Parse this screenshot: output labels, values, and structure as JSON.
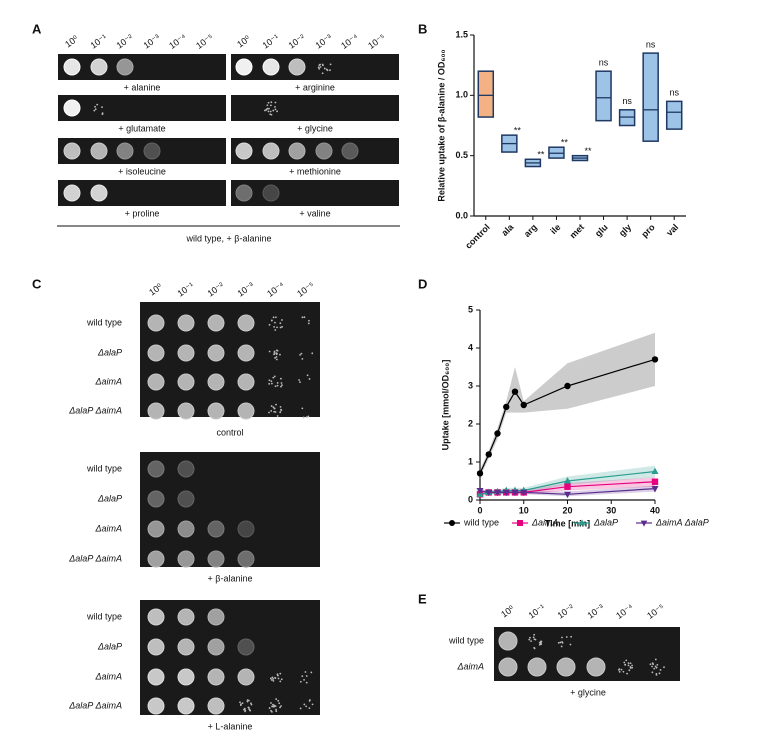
{
  "panel_labels": [
    "A",
    "B",
    "C",
    "D",
    "E"
  ],
  "panel_a": {
    "dilutions": [
      "10⁰",
      "10⁻¹",
      "10⁻²",
      "10⁻³",
      "10⁻⁴",
      "10⁻⁵"
    ],
    "plates": [
      "+ alanine",
      "+ arginine",
      "+ glutamate",
      "+ glycine",
      "+ isoleucine",
      "+ methionine",
      "+ proline",
      "+ valine"
    ],
    "caption": "wild type, + β-alanine"
  },
  "panel_c": {
    "dilutions": [
      "10⁰",
      "10⁻¹",
      "10⁻²",
      "10⁻³",
      "10⁻⁴",
      "10⁻⁵"
    ],
    "strains": [
      "wild type",
      "ΔalaP",
      "ΔaimA",
      "ΔalaP ΔaimA"
    ],
    "plates": [
      "control",
      "+ β-alanine",
      "+ L-alanine"
    ]
  },
  "panel_e": {
    "dilutions": [
      "10⁰",
      "10⁻¹",
      "10⁻²",
      "10⁻³",
      "10⁻⁴",
      "10⁻⁵"
    ],
    "strains": [
      "wild type",
      "ΔaimA"
    ],
    "plate": "+ glycine"
  },
  "chart_data": [
    {
      "type": "floating_bar",
      "ylabel": "Relative uptake of β-alanine / OD₆₀₀",
      "categories": [
        "control",
        "ala",
        "arg",
        "ile",
        "met",
        "glu",
        "gly",
        "pro",
        "val"
      ],
      "low": [
        0.82,
        0.53,
        0.41,
        0.48,
        0.46,
        0.79,
        0.75,
        0.62,
        0.72
      ],
      "high": [
        1.2,
        0.67,
        0.47,
        0.57,
        0.5,
        1.2,
        0.88,
        1.35,
        0.95
      ],
      "mean": [
        1.0,
        0.6,
        0.44,
        0.52,
        0.48,
        0.98,
        0.82,
        0.88,
        0.86
      ],
      "colors": [
        "#f4b183",
        "#9dc3e6",
        "#9dc3e6",
        "#9dc3e6",
        "#9dc3e6",
        "#9dc3e6",
        "#9dc3e6",
        "#9dc3e6",
        "#9dc3e6"
      ],
      "edge_color": "#1f3864",
      "annotations": [
        null,
        "**",
        "**",
        "**",
        "**",
        "ns",
        "ns",
        "ns",
        "ns"
      ],
      "ylim": [
        0,
        1.5
      ],
      "yticks": [
        {
          "value": 0,
          "label": "0.0"
        },
        0.5,
        {
          "value": 1,
          "label": "1.0"
        },
        1.5
      ]
    },
    {
      "type": "line",
      "xlabel": "Time [min]",
      "ylabel": "Uptake [mmol/OD₆₀₀]",
      "x": [
        0,
        2,
        4,
        6,
        8,
        10,
        20,
        40
      ],
      "xlim": [
        0,
        40
      ],
      "xticks": [
        0,
        10,
        20,
        30,
        40
      ],
      "ylim": [
        0,
        5
      ],
      "yticks": [
        0,
        1,
        2,
        3,
        4,
        5
      ],
      "legend": "bottom",
      "series": [
        {
          "name": "wild type",
          "color": "#000000",
          "marker": "circle",
          "values": [
            0.7,
            1.2,
            1.75,
            2.45,
            2.85,
            2.5,
            3.0,
            3.7
          ],
          "lower": [
            0.6,
            1.1,
            1.6,
            2.3,
            2.3,
            2.3,
            2.4,
            3.0
          ],
          "upper": [
            0.8,
            1.3,
            1.9,
            2.6,
            3.5,
            2.6,
            3.6,
            4.4
          ]
        },
        {
          "name": "ΔaimA",
          "color": "#e6007e",
          "marker": "square",
          "values": [
            0.15,
            0.2,
            0.2,
            0.2,
            0.2,
            0.2,
            0.35,
            0.48
          ],
          "lower": [
            0.1,
            0.15,
            0.15,
            0.15,
            0.15,
            0.15,
            0.25,
            0.35
          ],
          "upper": [
            0.2,
            0.25,
            0.25,
            0.25,
            0.25,
            0.25,
            0.45,
            0.6
          ]
        },
        {
          "name": "ΔalaP",
          "color": "#2a9d8f",
          "marker": "triangle-up",
          "values": [
            0.15,
            0.2,
            0.22,
            0.25,
            0.25,
            0.25,
            0.5,
            0.75
          ],
          "lower": [
            0.1,
            0.15,
            0.15,
            0.18,
            0.18,
            0.18,
            0.4,
            0.6
          ],
          "upper": [
            0.2,
            0.25,
            0.28,
            0.32,
            0.32,
            0.32,
            0.62,
            0.9
          ]
        },
        {
          "name": "ΔaimA ΔalaP",
          "color": "#5b2c8c",
          "marker": "triangle-down",
          "values": [
            0.25,
            0.2,
            0.2,
            0.2,
            0.2,
            0.2,
            0.15,
            0.3
          ],
          "lower": [
            0.2,
            0.15,
            0.15,
            0.15,
            0.15,
            0.15,
            0.1,
            0.22
          ],
          "upper": [
            0.3,
            0.25,
            0.25,
            0.25,
            0.25,
            0.25,
            0.22,
            0.38
          ]
        }
      ]
    }
  ]
}
